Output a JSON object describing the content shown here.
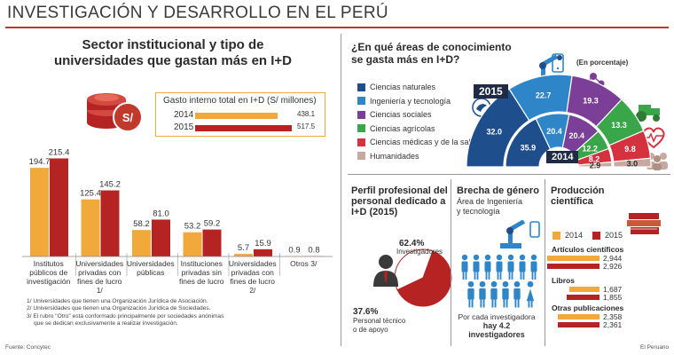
{
  "title": "INVESTIGACIÓN Y DESARROLLO EN EL PERÚ",
  "colors": {
    "y2014": "#f2a93b",
    "y2015": "#b52323",
    "red_line": "#c0392b"
  },
  "sector": {
    "title_line1": "Sector institucional y tipo de",
    "title_line2": "universidades que gastan más en I+D",
    "gasto_box_title": "Gasto interno total en I+D (S/ millones)",
    "gasto_2014_label": "2014",
    "gasto_2014_value": "438.1",
    "gasto_2015_label": "2015",
    "gasto_2015_value": "517.5",
    "money_icon": "coin-stack-soles-icon",
    "notes": [
      "1/ Universidades que tienen una Organización Jurídica de Asociación.",
      "2/ Universidades que tienen una Organización Jurídica de Sociedades.",
      "3/ El rubro \"Otro\" está conformado principalmente por sociedades anónimas",
      "que se dedican exclusivamente a realizar investigación."
    ]
  },
  "areas": {
    "title_line1": "¿En qué áreas de conocimiento",
    "title_line2": "se gasta más en I+D?",
    "unit": "(En porcentaje)",
    "label_2015": "2015",
    "label_2014": "2014",
    "legend": [
      {
        "name": "Ciencias naturales",
        "color": "#1f4e8c"
      },
      {
        "name": "Ingeniería y tecnología",
        "color": "#2e86c9"
      },
      {
        "name": "Ciencias sociales",
        "color": "#7b3f98"
      },
      {
        "name": "Ciencias agrícolas",
        "color": "#3aa64a"
      },
      {
        "name": "Ciencias médicas y de la salud",
        "color": "#d4323e"
      },
      {
        "name": "Humanidades",
        "color": "#c8a9a0"
      }
    ]
  },
  "perfil": {
    "title_line1": "Perfil profesional del",
    "title_line2": "personal dedicado a",
    "title_line3": "I+D (2015)",
    "investigadores_pct": "62.4%",
    "investigadores_label": "Investigadores",
    "tecnico_pct": "37.6%",
    "tecnico_label_1": "Personal técnico",
    "tecnico_label_2": "o de apoyo"
  },
  "brecha": {
    "title": "Brecha de género",
    "subtitle_1": "Área de Ingeniería",
    "subtitle_2": "y tecnología",
    "caption_1": "Por cada investigadora",
    "caption_2": "hay 4.2 investigadores"
  },
  "produccion": {
    "title_line1": "Producción",
    "title_line2": "científica",
    "legend_2014": "2014",
    "legend_2015": "2015",
    "groups": [
      {
        "label": "Artículos científicos",
        "v2014": "2,944",
        "v2015": "2,926"
      },
      {
        "label": "Libros",
        "v2014": "1,687",
        "v2015": "1,855"
      },
      {
        "label": "Otras publicaciones",
        "v2014": "2,358",
        "v2015": "2,361"
      }
    ]
  },
  "footer": {
    "source": "Fuente: Concytec",
    "credit": "El Peruano"
  },
  "chart_data": [
    {
      "type": "bar",
      "categories": [
        "Institutos públicos de investigación",
        "Universidades privadas con fines de lucro 1/",
        "Universidades públicas",
        "Instituciones privadas sin fines de lucro",
        "Universidades privadas con fines de lucro 2/",
        "Otros 3/"
      ],
      "series": [
        {
          "name": "2014",
          "values": [
            194.7,
            125.4,
            58.2,
            53.2,
            5.7,
            0.9
          ],
          "labels": [
            "194.7",
            "125.4",
            "58.2",
            "53.2",
            "5.7",
            "0.9"
          ]
        },
        {
          "name": "2015",
          "values": [
            215.4,
            145.2,
            81.0,
            59.2,
            15.9,
            0.8
          ],
          "labels": [
            "215.4",
            "145.2",
            "81.0",
            "59.2",
            "15.9",
            "0.8"
          ]
        }
      ],
      "ylim": [
        0,
        230
      ]
    },
    {
      "type": "bar",
      "categories": [
        "Gasto interno total en I+D (S/ millones)"
      ],
      "series": [
        {
          "name": "2014",
          "values": [
            438.1
          ]
        },
        {
          "name": "2015",
          "values": [
            517.5
          ]
        }
      ]
    },
    {
      "type": "pie",
      "shape": "half-donut",
      "categories": [
        "Ciencias naturales",
        "Ingeniería y tecnología",
        "Ciencias sociales",
        "Ciencias agrícolas",
        "Ciencias médicas y de la salud",
        "Humanidades"
      ],
      "series": [
        {
          "name": "2015",
          "values": [
            32.0,
            22.7,
            19.3,
            13.3,
            9.8,
            3.0
          ],
          "labels": [
            "32.0",
            "22.7",
            "19.3",
            "13.3",
            "9.8",
            "3.0"
          ]
        },
        {
          "name": "2014",
          "values": [
            35.9,
            20.4,
            20.4,
            12.2,
            8.2,
            2.9
          ],
          "labels": [
            "35.9",
            "20.4",
            "20.4",
            "12.2",
            "8.2",
            "2.9"
          ]
        }
      ]
    },
    {
      "type": "pie",
      "categories": [
        "Investigadores",
        "Personal técnico o de apoyo"
      ],
      "values": [
        62.4,
        37.6
      ]
    },
    {
      "type": "bar",
      "orientation": "horizontal",
      "categories": [
        "Artículos científicos",
        "Libros",
        "Otras publicaciones"
      ],
      "series": [
        {
          "name": "2014",
          "values": [
            2944,
            1687,
            2358
          ]
        },
        {
          "name": "2015",
          "values": [
            2926,
            1855,
            2361
          ]
        }
      ]
    }
  ]
}
